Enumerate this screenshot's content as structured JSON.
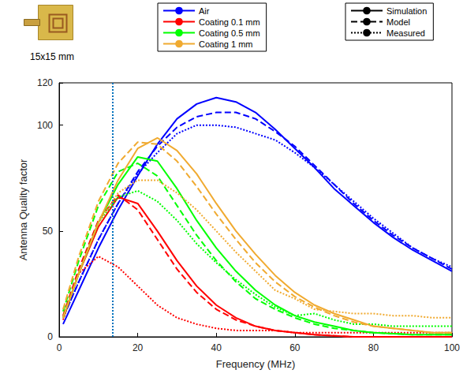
{
  "chart_data": {
    "type": "line",
    "image_caption": "15x15 mm",
    "x_label": "Frequency (MHz)",
    "y_label": "Antenna Quality factor",
    "xlim": [
      0,
      100
    ],
    "xticks": [
      0,
      20,
      40,
      60,
      80,
      100
    ],
    "ylim": [
      0,
      120
    ],
    "yticks": [
      0,
      50,
      100
    ],
    "grid": false,
    "legend": "top",
    "x": [
      1,
      5,
      10,
      15,
      20,
      25,
      30,
      35,
      40,
      45,
      50,
      55,
      60,
      65,
      70,
      75,
      80,
      85,
      90,
      95,
      100
    ],
    "line_style_legend": [
      {
        "label": "Simulation",
        "line_style": "solid"
      },
      {
        "label": "Model",
        "line_style": "dashed"
      },
      {
        "label": "Measured",
        "line_style": "dotted"
      }
    ],
    "markers": [
      {
        "x": 13.56,
        "color": "#0072bd",
        "line_style": "dotted"
      }
    ],
    "series": [
      {
        "name": "Air",
        "color": "#0000ff",
        "line_style": "solid",
        "values": [
          6,
          22,
          42,
          60,
          76,
          91,
          103,
          110,
          113,
          111,
          106,
          98,
          89,
          80,
          70,
          62,
          54,
          47,
          41,
          36,
          31
        ]
      },
      {
        "name": "Air",
        "color": "#0000ff",
        "line_style": "dashed",
        "values": [
          9,
          26,
          46,
          63,
          78,
          90,
          99,
          104,
          106,
          106,
          103,
          97,
          90,
          81,
          72,
          63,
          55,
          48,
          42,
          37,
          32
        ]
      },
      {
        "name": "Air",
        "color": "#0000ff",
        "line_style": "dotted",
        "values": [
          9,
          26,
          46,
          63,
          77,
          87,
          96,
          100,
          100,
          99,
          96,
          93,
          87,
          80,
          72,
          64,
          56,
          49,
          42,
          37,
          33
        ]
      },
      {
        "name": "Coating 0.1 mm",
        "color": "#ff0000",
        "line_style": "solid",
        "values": [
          9,
          30,
          52,
          66,
          63,
          50,
          36,
          24,
          15,
          9,
          5,
          3,
          2,
          1,
          0.5,
          0,
          0,
          0,
          0,
          0,
          0
        ]
      },
      {
        "name": "Coating 0.1 mm",
        "color": "#ff0000",
        "line_style": "dashed",
        "values": [
          10,
          32,
          55,
          67,
          60,
          46,
          32,
          21,
          13,
          8,
          5,
          3,
          2,
          1,
          0.5,
          0,
          0,
          0,
          0,
          0,
          0
        ]
      },
      {
        "name": "Coating 0.1 mm",
        "color": "#ff0000",
        "line_style": "dotted",
        "values": [
          8,
          30,
          38,
          33,
          24,
          15,
          9,
          6,
          4,
          3,
          3,
          3,
          2,
          2,
          2,
          2,
          2,
          2,
          2,
          2,
          2
        ]
      },
      {
        "name": "Coating 0.5 mm",
        "color": "#00ff00",
        "line_style": "solid",
        "values": [
          9,
          30,
          54,
          72,
          85,
          83,
          70,
          55,
          42,
          31,
          22,
          15,
          10,
          7,
          5,
          3,
          2,
          1.5,
          1,
          1,
          1
        ]
      },
      {
        "name": "Coating 0.5 mm",
        "color": "#00ff00",
        "line_style": "dashed",
        "values": [
          12,
          36,
          62,
          78,
          82,
          76,
          62,
          48,
          36,
          26,
          18,
          13,
          9,
          6,
          4,
          3,
          2,
          1.5,
          1,
          1,
          1
        ]
      },
      {
        "name": "Coating 0.5 mm",
        "color": "#00ff00",
        "line_style": "dotted",
        "values": [
          9,
          30,
          54,
          66,
          69,
          64,
          55,
          44,
          35,
          27,
          20,
          14,
          10,
          11,
          8,
          6,
          6,
          5,
          5,
          5,
          5
        ]
      },
      {
        "name": "Coating 1 mm",
        "color": "#f0aa30",
        "line_style": "solid",
        "values": [
          9,
          30,
          54,
          74,
          89,
          94,
          88,
          77,
          63,
          50,
          39,
          29,
          21,
          15,
          11,
          8,
          5,
          4,
          3,
          2,
          2
        ]
      },
      {
        "name": "Coating 1 mm",
        "color": "#f0aa30",
        "line_style": "dashed",
        "values": [
          13,
          38,
          64,
          82,
          92,
          91,
          83,
          71,
          58,
          46,
          35,
          26,
          19,
          14,
          10,
          7,
          5,
          4,
          3,
          2,
          2
        ]
      },
      {
        "name": "Coating 1 mm",
        "color": "#f0aa30",
        "line_style": "dotted",
        "values": [
          9,
          30,
          54,
          68,
          74,
          74,
          68,
          60,
          50,
          40,
          31,
          22,
          18,
          13,
          12,
          11,
          11,
          10,
          10,
          9,
          9
        ]
      }
    ]
  }
}
